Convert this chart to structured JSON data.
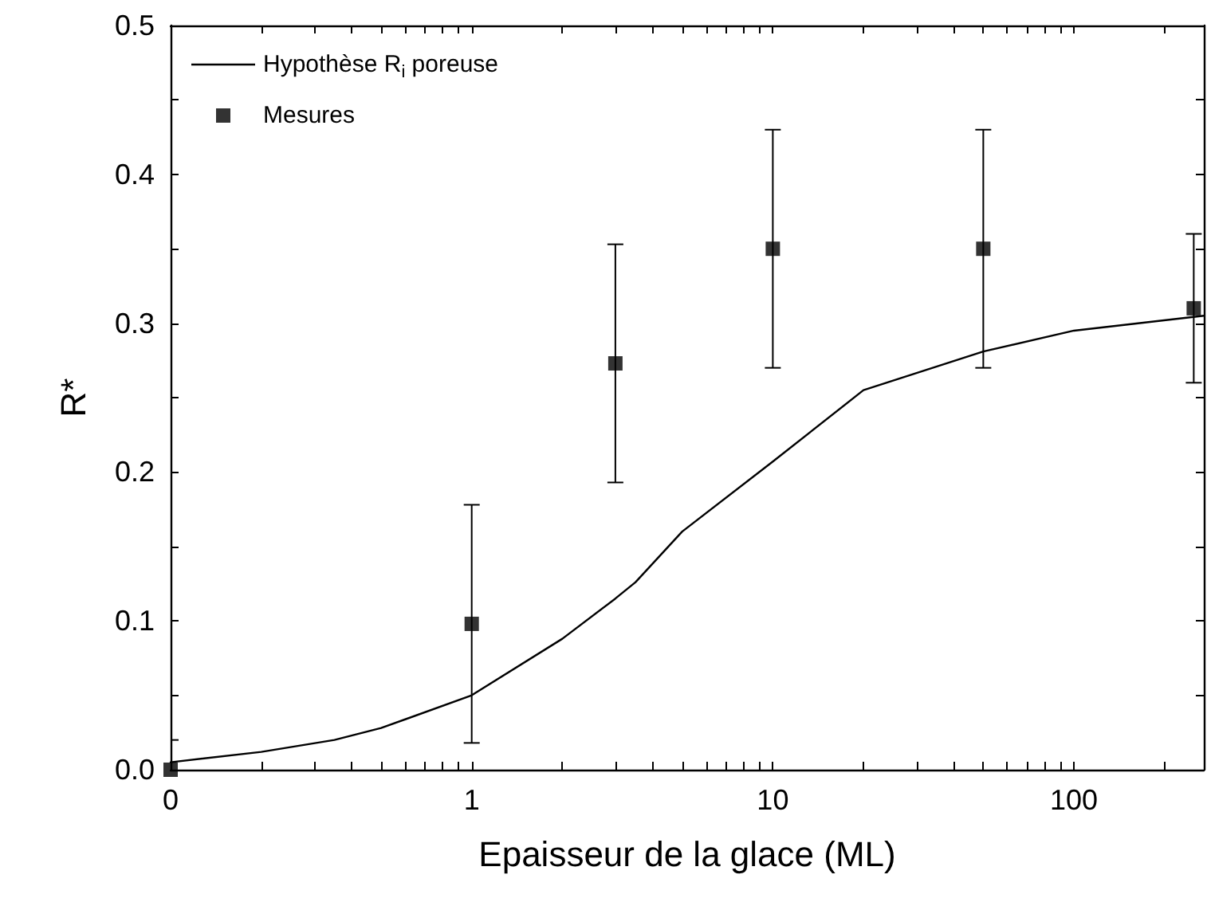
{
  "chart_data": {
    "type": "line",
    "xlabel": "Epaisseur de la glace (ML)",
    "ylabel": "R*",
    "log": "x",
    "xlim": [
      0.1,
      270
    ],
    "xticks": [
      {
        "value": 0.1,
        "label": "0"
      },
      {
        "value": 0.2,
        "label": null
      },
      {
        "value": 0.3,
        "label": null
      },
      {
        "value": 0.4,
        "label": null
      },
      {
        "value": 0.5,
        "label": null
      },
      {
        "value": 0.6,
        "label": null
      },
      {
        "value": 0.7,
        "label": null
      },
      {
        "value": 0.8,
        "label": null
      },
      {
        "value": 0.9,
        "label": null
      },
      1,
      {
        "value": 2,
        "label": null
      },
      {
        "value": 3,
        "label": null
      },
      {
        "value": 4,
        "label": null
      },
      {
        "value": 5,
        "label": null
      },
      {
        "value": 6,
        "label": null
      },
      {
        "value": 7,
        "label": null
      },
      {
        "value": 8,
        "label": null
      },
      {
        "value": 9,
        "label": null
      },
      10,
      {
        "value": 20,
        "label": null
      },
      {
        "value": 30,
        "label": null
      },
      {
        "value": 40,
        "label": null
      },
      {
        "value": 50,
        "label": null
      },
      {
        "value": 60,
        "label": null
      },
      {
        "value": 70,
        "label": null
      },
      {
        "value": 80,
        "label": null
      },
      {
        "value": 90,
        "label": null
      },
      100,
      {
        "value": 200,
        "label": null
      }
    ],
    "ylim": [
      0,
      0.5
    ],
    "yticks": [
      {
        "value": 0,
        "label": "0.0"
      },
      {
        "value": 0.05,
        "label": null
      },
      0.1,
      {
        "value": 0.15,
        "label": null
      },
      0.2,
      {
        "value": 0.25,
        "label": null
      },
      0.3,
      {
        "value": 0.35,
        "label": null
      },
      0.4,
      {
        "value": 0.45,
        "label": null
      },
      0.5
    ],
    "grid": false,
    "legend": "top left",
    "series": [
      {
        "name": "Hypothèse R$_{i}$ poreuse",
        "color": "#000000",
        "line_style": "solid",
        "marker": "none",
        "x": [
          0.1,
          0.2,
          0.35,
          0.5,
          1,
          2,
          3,
          3.5,
          5,
          10,
          20,
          50,
          100,
          270
        ],
        "values": [
          0.005,
          0.012,
          0.02,
          0.028,
          0.05,
          0.088,
          0.115,
          0.126,
          0.16,
          0.207,
          0.255,
          0.281,
          0.295,
          0.305
        ]
      },
      {
        "name": "Mesures",
        "type": "scatter",
        "color": "#000000",
        "marker": "square",
        "x": [
          0.1,
          1,
          3,
          10,
          50,
          250
        ],
        "values": [
          0,
          0.098,
          0.273,
          0.35,
          0.35,
          0.31
        ],
        "errors": [
          0.02,
          0.08,
          0.08,
          0.08,
          0.08,
          0.05
        ]
      }
    ]
  }
}
